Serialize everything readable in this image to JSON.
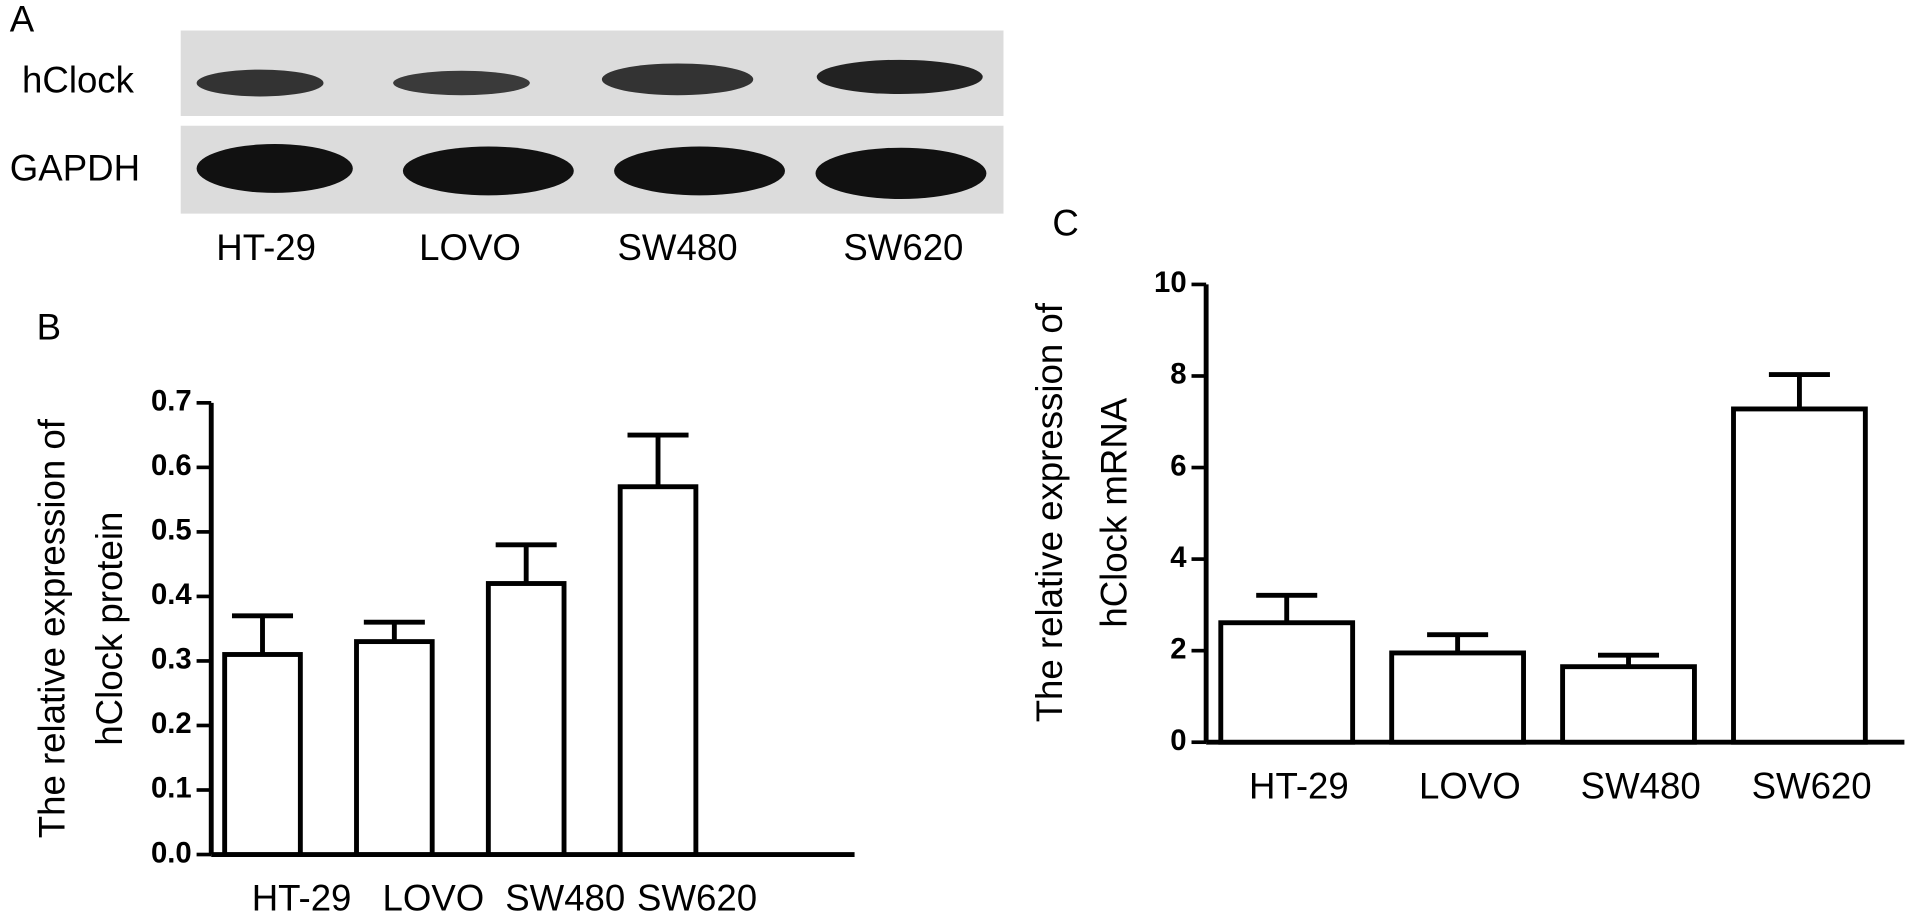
{
  "panel_a": {
    "label": "A",
    "rows": [
      "hClock",
      "GAPDH"
    ],
    "lanes": [
      "HT-29",
      "LOVO",
      "SW480",
      "SW620"
    ]
  },
  "chart_data": [
    {
      "type": "bar",
      "panel_label": "B",
      "ylabel": [
        "The relative expression of",
        "hClock protein"
      ],
      "categories": [
        "HT-29",
        "LOVO",
        "SW480",
        "SW620"
      ],
      "values": [
        0.31,
        0.33,
        0.42,
        0.57
      ],
      "errors": [
        0.06,
        0.03,
        0.06,
        0.08
      ],
      "color": "#ffffff",
      "edgecolor": "#000000",
      "ylim": [
        0,
        0.7
      ],
      "yticks": [
        {
          "value": 0,
          "label": "0.0"
        },
        0.1,
        0.2,
        0.3,
        0.4,
        0.5,
        0.6,
        0.7
      ]
    },
    {
      "type": "bar",
      "panel_label": "C",
      "ylabel": [
        "The relative expression of",
        "hClock mRNA"
      ],
      "categories": [
        "HT-29",
        "LOVO",
        "SW480",
        "SW620"
      ],
      "values": [
        2.61,
        1.95,
        1.65,
        7.28
      ],
      "errors": [
        0.6,
        0.4,
        0.25,
        0.75
      ],
      "color": "#ffffff",
      "edgecolor": "#000000",
      "ylim": [
        0,
        10
      ],
      "yticks": [
        0,
        2,
        4,
        6,
        8,
        10
      ]
    }
  ]
}
